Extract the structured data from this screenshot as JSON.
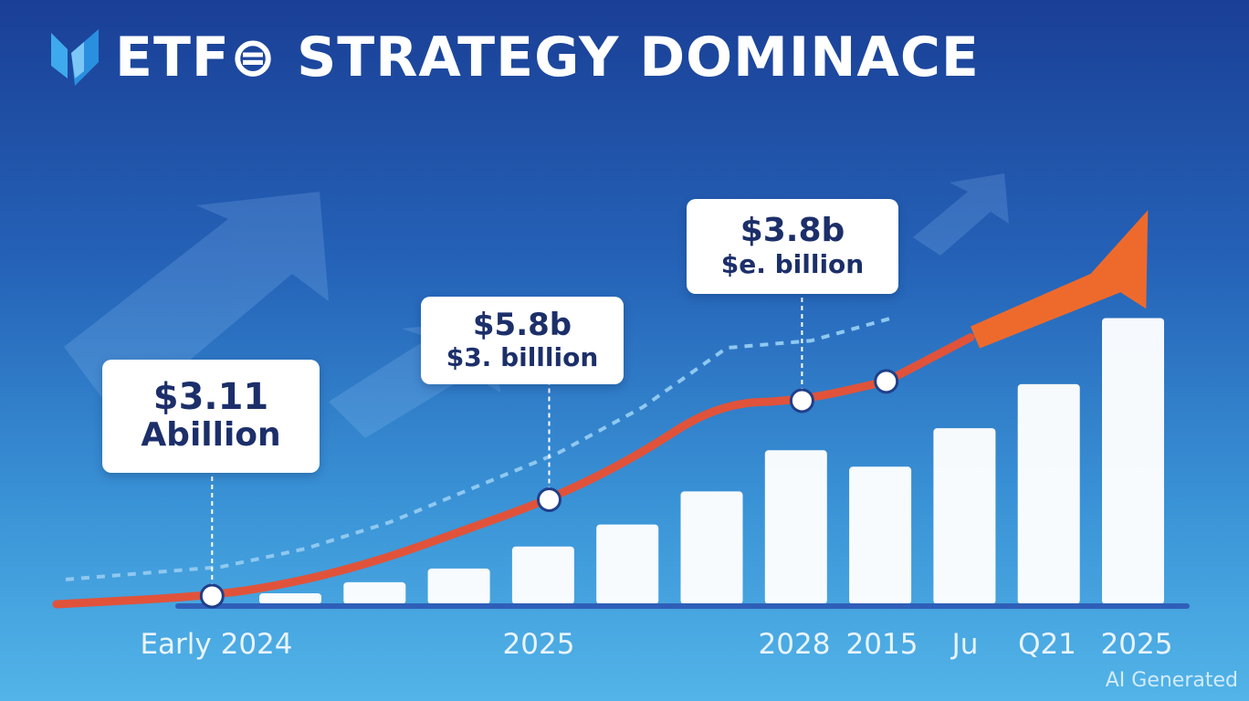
{
  "title": "ETF⊜ STRATEGY DOMINACE",
  "watermark": "AI Generated",
  "colors": {
    "bar": "#ffffff",
    "trend_line": "#e0533a",
    "forecast_line": "#8fc8f0",
    "arrow": "#ee6a2c",
    "axis": "#2f5fb8",
    "callout_text": "#1c2f6a"
  },
  "icons": [
    "logo-icon",
    "growth-arrow-icon"
  ],
  "callouts": [
    {
      "line1": "$3.11",
      "line2": "Abillion"
    },
    {
      "line1": "$5.8b",
      "line2": "$3. billlion"
    },
    {
      "line1": "$3.8b",
      "line2": "$e. billion"
    }
  ],
  "chart_data": {
    "type": "bar",
    "title": "ETF⊜ STRATEGY DOMINACE",
    "x_tick_labels": [
      "Early 2024",
      "2025",
      "2028",
      "2015",
      "Ju",
      "Q21",
      "2025"
    ],
    "bars": [
      {
        "label": "",
        "value": 4
      },
      {
        "label": "",
        "value": 8
      },
      {
        "label": "",
        "value": 13
      },
      {
        "label": "",
        "value": 21
      },
      {
        "label": "",
        "value": 29
      },
      {
        "label": "",
        "value": 41
      },
      {
        "label": "",
        "value": 56
      },
      {
        "label": "",
        "value": 50
      },
      {
        "label": "",
        "value": 64
      },
      {
        "label": "",
        "value": 80
      },
      {
        "label": "",
        "value": 104
      }
    ],
    "trend_line": [
      0,
      3,
      8,
      16,
      27,
      38,
      53,
      73,
      74,
      81,
      97,
      125
    ],
    "markers": [
      {
        "index": 1,
        "callout": 0
      },
      {
        "index": 5,
        "callout": 1
      },
      {
        "index": 8,
        "callout": 2
      },
      {
        "index": 9,
        "callout": null
      }
    ],
    "ylim": [
      0,
      140
    ],
    "grid": false,
    "legend": "none"
  }
}
